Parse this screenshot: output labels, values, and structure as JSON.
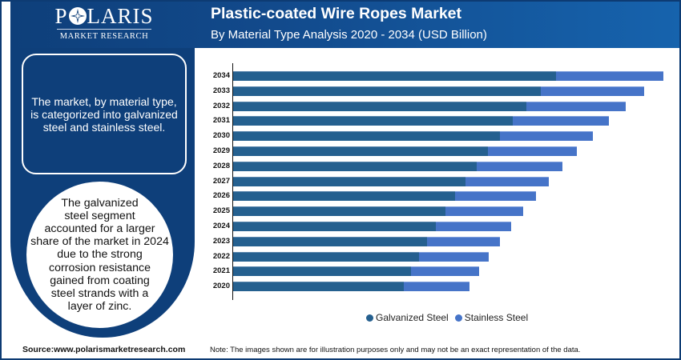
{
  "logo": {
    "name_part1": "P",
    "name_part2": "LARIS",
    "subtitle": "MARKET RESEARCH"
  },
  "header": {
    "title": "Plastic-coated Wire Ropes Market",
    "subtitle": "By Material Type Analysis 2020 - 2034 (USD Billion)"
  },
  "left_panel": {
    "info_box_text": "The market, by material type, is categorized into galvanized steel and stainless steel.",
    "circle_lines": [
      "The galvanized",
      "steel segment",
      "accounted for a larger",
      "share of the market in 2024",
      "due to the strong",
      "corrosion resistance",
      "gained from coating",
      "steel strands with a",
      "layer of zinc."
    ]
  },
  "footer": {
    "source": "Source:www.polarismarketresearch.com",
    "note": "Note: The images shown are for illustration purposes only and may not be an exact representation of the data."
  },
  "colors": {
    "galvanized": "#25608f",
    "stainless": "#4674c8",
    "header": "#124a8c",
    "panel": "#0e3f7a"
  },
  "chart_data": {
    "type": "bar",
    "orientation": "horizontal",
    "stacked": true,
    "title": "Plastic-coated Wire Ropes Market",
    "subtitle": "By Material Type Analysis 2020 - 2034 (USD Billion)",
    "xlabel": "",
    "ylabel": "",
    "value_axis_labels_shown": false,
    "units_note": "Values are relative estimates from bar lengths (no value axis shown)",
    "categories": [
      "2034",
      "2033",
      "2032",
      "2031",
      "2030",
      "2029",
      "2028",
      "2027",
      "2026",
      "2025",
      "2024",
      "2023",
      "2022",
      "2021",
      "2020"
    ],
    "series": [
      {
        "name": "Galvanized Steel",
        "color": "#25608f",
        "values": [
          4.03,
          3.84,
          3.66,
          3.49,
          3.33,
          3.18,
          3.04,
          2.9,
          2.77,
          2.65,
          2.53,
          2.42,
          2.32,
          2.22,
          2.13
        ]
      },
      {
        "name": "Stainless Steel",
        "color": "#4674c8",
        "values": [
          1.34,
          1.29,
          1.24,
          1.2,
          1.16,
          1.11,
          1.07,
          1.04,
          1.01,
          0.97,
          0.94,
          0.91,
          0.87,
          0.85,
          0.82
        ]
      }
    ],
    "legend": {
      "position": "bottom",
      "entries": [
        "Galvanized Steel",
        "Stainless Steel"
      ]
    },
    "grid": false
  }
}
